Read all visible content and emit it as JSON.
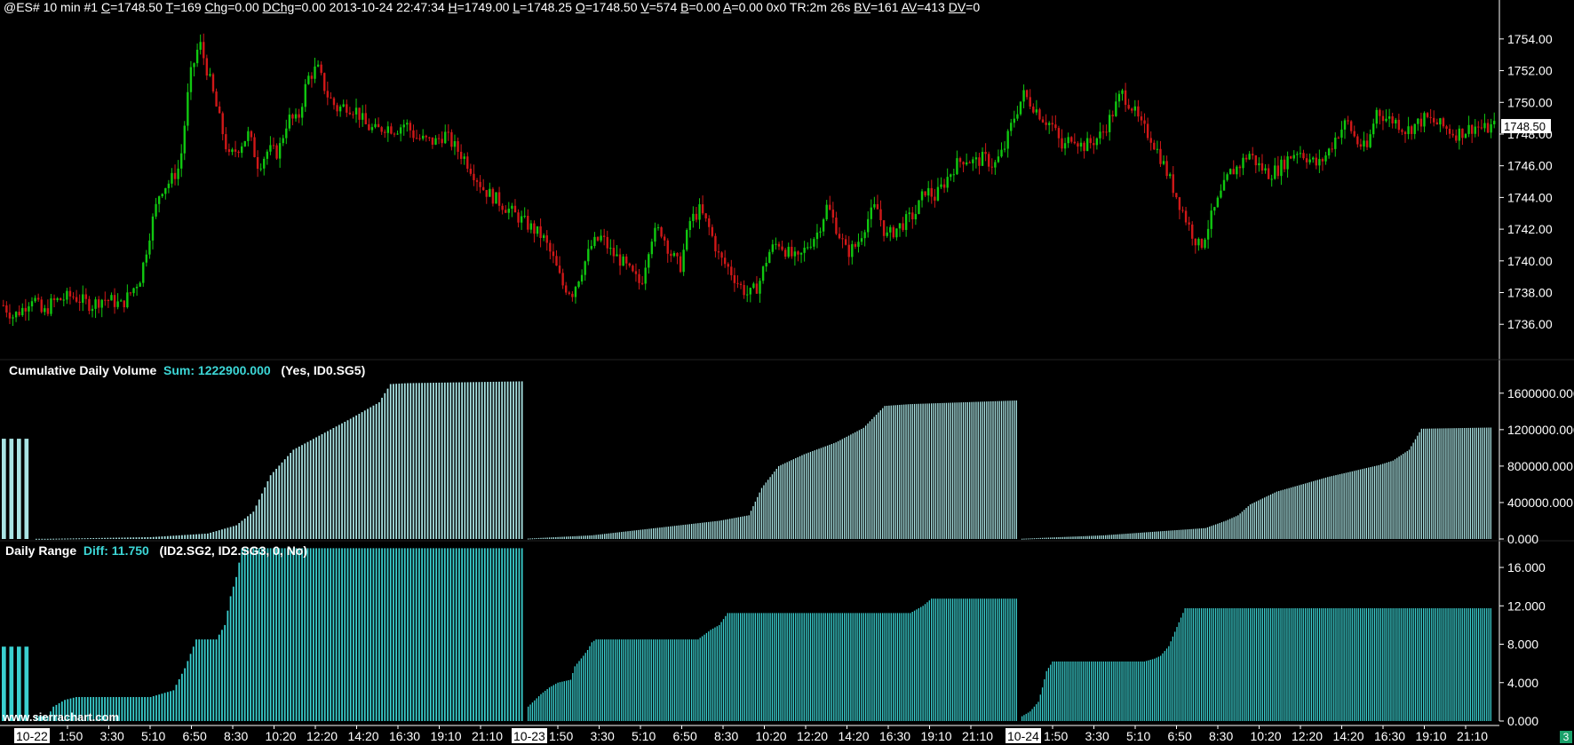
{
  "header": {
    "symbol": "@ES#",
    "interval": "10 min",
    "chart_no": "#1",
    "fields": [
      {
        "k": "C",
        "v": "1748.50"
      },
      {
        "k": "T",
        "v": "169"
      },
      {
        "k": "Chg",
        "v": "0.00"
      },
      {
        "k": "DChg",
        "v": "0.00"
      },
      {
        "k": "",
        "v": "2013-10-24 22:47:34"
      },
      {
        "k": "H",
        "v": "1749.00"
      },
      {
        "k": "L",
        "v": "1748.25"
      },
      {
        "k": "O",
        "v": "1748.50"
      },
      {
        "k": "V",
        "v": "574"
      },
      {
        "k": "B",
        "v": "0.00"
      },
      {
        "k": "A",
        "v": "0.00"
      },
      {
        "k": "",
        "v": "0x0 TR:2m 26s"
      },
      {
        "k": "BV",
        "v": "161"
      },
      {
        "k": "AV",
        "v": "413"
      },
      {
        "k": "DV",
        "v": "0"
      }
    ]
  },
  "panels": {
    "volume": {
      "title": "Cumulative Daily Volume",
      "sum_label": "Sum: 1222900.000",
      "params": "(Yes, ID0.SG5)"
    },
    "range": {
      "title": "Daily Range",
      "diff_label": "Diff: 11.750",
      "params": "(ID2.SG2, ID2.SG3, 0, No)"
    }
  },
  "watermark": "www.sierrachart.com",
  "corner_badge": "3",
  "colors": {
    "up": "#10c810",
    "down": "#d01818",
    "wick": "#c0c0c0",
    "volume": "#a9e4e4",
    "range": "#3ad0d0",
    "axis": "#ffffff",
    "background": "#000000"
  },
  "chart_data": [
    {
      "type": "candlestick",
      "title": "@ES# 10 min",
      "ylim": [
        1734.5,
        1755
      ],
      "yticks": [
        1736,
        1738,
        1740,
        1742,
        1744,
        1746,
        1748,
        1750,
        1752,
        1754
      ],
      "ytick_labels": [
        "1736.00",
        "1738.00",
        "1740.00",
        "1742.00",
        "1744.00",
        "1746.00",
        "1748.00",
        "1750.00",
        "1752.00",
        "1754.00"
      ],
      "last_price_label": "1748.50",
      "last_price": 1748.5,
      "price_path": [
        1737.2,
        1736.5,
        1737.0,
        1737.8,
        1736.6,
        1737.4,
        1737.6,
        1737.8,
        1737.5,
        1737.2,
        1737.6,
        1737.5,
        1737.2,
        1738.0,
        1739.0,
        1742.0,
        1744.5,
        1745.0,
        1746.0,
        1751.5,
        1753.8,
        1751.5,
        1749.0,
        1746.5,
        1747.2,
        1748.0,
        1746.0,
        1747.0,
        1746.8,
        1749.0,
        1748.8,
        1751.5,
        1752.2,
        1750.5,
        1749.6,
        1749.8,
        1749.5,
        1748.5,
        1748.2,
        1748.5,
        1748.3,
        1748.7,
        1747.8,
        1747.6,
        1747.5,
        1748.0,
        1747.2,
        1746.5,
        1745.5,
        1744.5,
        1744.0,
        1743.5,
        1743.0,
        1742.5,
        1742.0,
        1741.5,
        1740.2,
        1738.5,
        1738.0,
        1739.5,
        1741.0,
        1741.5,
        1740.5,
        1740.0,
        1739.2,
        1738.5,
        1741.5,
        1742.0,
        1740.5,
        1739.6,
        1742.5,
        1743.2,
        1742.0,
        1740.2,
        1739.5,
        1738.5,
        1737.8,
        1738.5,
        1740.5,
        1741.2,
        1740.5,
        1740.0,
        1741.0,
        1741.8,
        1743.5,
        1742.0,
        1740.5,
        1741.0,
        1742.5,
        1743.5,
        1741.5,
        1742.0,
        1742.5,
        1743.0,
        1744.5,
        1744.0,
        1745.0,
        1746.0,
        1746.5,
        1746.2,
        1746.5,
        1746.0,
        1747.0,
        1749.0,
        1750.5,
        1749.8,
        1749.0,
        1748.5,
        1747.0,
        1748.0,
        1747.2,
        1747.5,
        1748.0,
        1749.2,
        1750.6,
        1749.8,
        1748.5,
        1747.8,
        1746.5,
        1745.0,
        1743.5,
        1742.0,
        1740.8,
        1742.5,
        1744.0,
        1745.5,
        1746.0,
        1746.8,
        1746.0,
        1745.5,
        1745.8,
        1746.5,
        1747.0,
        1746.5,
        1746.0,
        1746.8,
        1748.0,
        1748.8,
        1747.5,
        1747.0,
        1749.5,
        1749.0,
        1748.8,
        1748.2,
        1748.6,
        1749.0,
        1748.7,
        1748.4,
        1748.0,
        1748.2,
        1748.5,
        1748.3,
        1748.5
      ]
    },
    {
      "type": "bar",
      "title": "Cumulative Daily Volume",
      "ylim": [
        0,
        1900000
      ],
      "yticks": [
        0,
        400000,
        800000,
        1200000,
        1600000
      ],
      "ytick_labels": [
        "0.000",
        "400000.000",
        "800000.000",
        "1200000.000",
        "1600000.000"
      ],
      "series": [
        {
          "name": "Sum",
          "segments": [
            {
              "points": [
                [
                  0,
                  1100000
                ],
                [
                  3,
                  1100000
                ]
              ]
            },
            {
              "points": [
                [
                  4,
                  2000
                ],
                [
                  40,
                  20000
                ],
                [
                  60,
                  60000
                ],
                [
                  70,
                  150000
                ],
                [
                  76,
                  300000
                ],
                [
                  82,
                  700000
                ],
                [
                  90,
                  980000
                ],
                [
                  100,
                  1150000
                ],
                [
                  110,
                  1320000
                ],
                [
                  120,
                  1500000
                ],
                [
                  124,
                  1700000
                ],
                [
                  130,
                  1710000
                ],
                [
                  170,
                  1730000
                ]
              ]
            },
            {
              "points": [
                [
                  0,
                  5000
                ],
                [
                  30,
                  40000
                ],
                [
                  60,
                  120000
                ],
                [
                  90,
                  200000
                ],
                [
                  104,
                  260000
                ],
                [
                  110,
                  560000
                ],
                [
                  118,
                  800000
                ],
                [
                  130,
                  930000
                ],
                [
                  145,
                  1060000
                ],
                [
                  158,
                  1220000
                ],
                [
                  168,
                  1460000
                ],
                [
                  180,
                  1480000
                ],
                [
                  230,
                  1520000
                ]
              ]
            },
            {
              "points": [
                [
                  0,
                  3000
                ],
                [
                  40,
                  40000
                ],
                [
                  90,
                  120000
                ],
                [
                  100,
                  200000
                ],
                [
                  106,
                  260000
                ],
                [
                  112,
                  380000
                ],
                [
                  125,
                  520000
                ],
                [
                  150,
                  680000
                ],
                [
                  175,
                  810000
                ],
                [
                  182,
                  860000
                ],
                [
                  190,
                  980000
                ],
                [
                  196,
                  1210000
                ],
                [
                  230,
                  1222900
                ]
              ]
            }
          ]
        }
      ]
    },
    {
      "type": "bar",
      "title": "Daily Range",
      "ylim": [
        0,
        18.5
      ],
      "yticks": [
        0,
        4,
        8,
        12,
        16
      ],
      "ytick_labels": [
        "0.000",
        "4.000",
        "8.000",
        "12.000",
        "16.000"
      ],
      "series": [
        {
          "name": "Diff",
          "segments": [
            {
              "points": [
                [
                  0,
                  7.75
                ],
                [
                  3,
                  7.75
                ]
              ]
            },
            {
              "points": [
                [
                  4,
                  0.5
                ],
                [
                  6,
                  1.5
                ],
                [
                  10,
                  2.2
                ],
                [
                  14,
                  2.5
                ],
                [
                  40,
                  2.5
                ],
                [
                  48,
                  3.2
                ],
                [
                  52,
                  5.5
                ],
                [
                  56,
                  8.5
                ],
                [
                  63,
                  8.5
                ],
                [
                  66,
                  10
                ],
                [
                  68,
                  13
                ],
                [
                  70,
                  15
                ],
                [
                  72,
                  18
                ],
                [
                  170,
                  18
                ]
              ]
            },
            {
              "points": [
                [
                  0,
                  1.5
                ],
                [
                  6,
                  2.8
                ],
                [
                  10,
                  3.5
                ],
                [
                  14,
                  4.0
                ],
                [
                  20,
                  4.3
                ],
                [
                  22,
                  5.7
                ],
                [
                  26,
                  6.8
                ],
                [
                  28,
                  7.4
                ],
                [
                  30,
                  8.2
                ],
                [
                  32,
                  8.5
                ],
                [
                  80,
                  8.5
                ],
                [
                  86,
                  9.5
                ],
                [
                  90,
                  10.0
                ],
                [
                  94,
                  11.25
                ],
                [
                  180,
                  11.25
                ],
                [
                  186,
                  12.0
                ],
                [
                  190,
                  12.75
                ],
                [
                  230,
                  12.75
                ]
              ]
            },
            {
              "points": [
                [
                  0,
                  0.5
                ],
                [
                  4,
                  1.0
                ],
                [
                  8,
                  2.0
                ],
                [
                  10,
                  3.5
                ],
                [
                  12,
                  5.2
                ],
                [
                  15,
                  6.2
                ],
                [
                  60,
                  6.2
                ],
                [
                  65,
                  6.5
                ],
                [
                  68,
                  6.8
                ],
                [
                  72,
                  7.8
                ],
                [
                  76,
                  9.8
                ],
                [
                  80,
                  11.75
                ],
                [
                  230,
                  11.75
                ]
              ]
            }
          ]
        }
      ]
    }
  ],
  "x_axis": {
    "date_labels": [
      "10-22",
      "10-23",
      "10-24"
    ],
    "time_labels": [
      "1:50",
      "3:30",
      "5:10",
      "6:50",
      "8:30",
      "10:20",
      "12:20",
      "14:20",
      "16:30",
      "19:10",
      "21:10",
      "1:50",
      "3:30",
      "5:10",
      "6:50",
      "8:30",
      "10:20",
      "12:20",
      "14:20",
      "16:30",
      "19:10",
      "21:10",
      "1:50",
      "3:30",
      "5:10",
      "6:50",
      "8:30",
      "10:20",
      "12:20",
      "14:20",
      "16:30",
      "19:10",
      "21:10"
    ]
  }
}
